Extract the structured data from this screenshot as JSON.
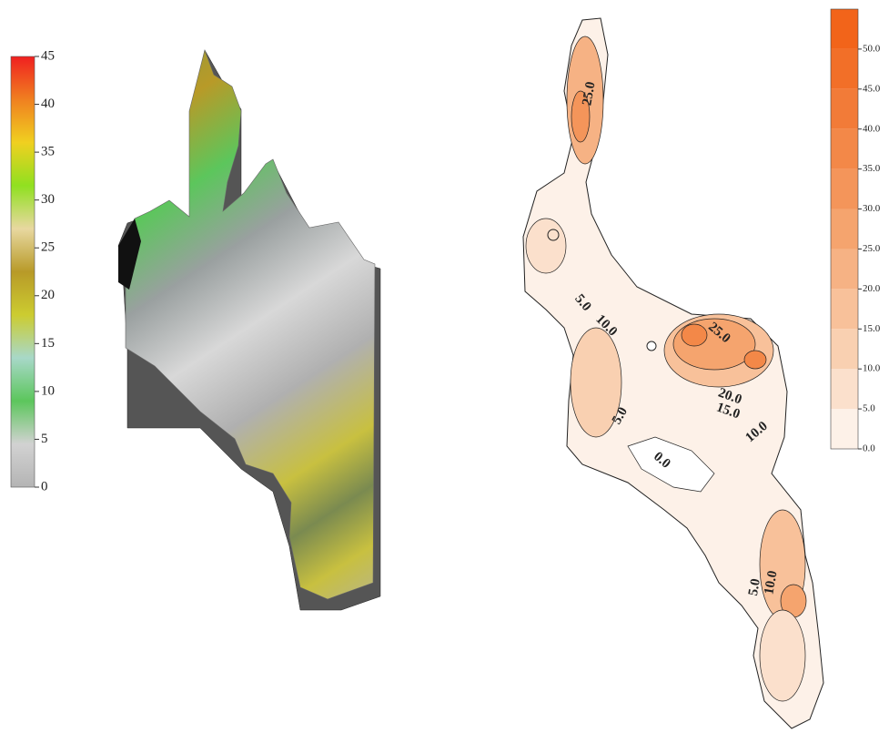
{
  "chart_data": [
    {
      "type": "surface3d",
      "colorbar": {
        "ylim": [
          0,
          45
        ],
        "yticks": [
          0,
          5,
          10,
          15,
          20,
          25,
          30,
          35,
          40,
          45
        ],
        "colors": [
          "#b4b4b4",
          "#d2d2d2",
          "#5cc65c",
          "#a8d8c8",
          "#cccc30",
          "#b89a28",
          "#e8d8a0",
          "#90e020",
          "#f0d020",
          "#f08020",
          "#f02020"
        ]
      }
    },
    {
      "type": "contour",
      "colorbar": {
        "ylim": [
          0,
          55
        ],
        "yticks": [
          {
            "value": 0,
            "label": "0.0"
          },
          {
            "value": 5,
            "label": "5.0"
          },
          {
            "value": 10,
            "label": "10.0"
          },
          {
            "value": 15,
            "label": "15.0"
          },
          {
            "value": 20,
            "label": "20.0"
          },
          {
            "value": 25,
            "label": "25.0"
          },
          {
            "value": 30,
            "label": "30.0"
          },
          {
            "value": 35,
            "label": "35.0"
          },
          {
            "value": 40,
            "label": "40.0"
          },
          {
            "value": 45,
            "label": "45.0"
          },
          {
            "value": 50,
            "label": "50.0"
          }
        ],
        "colors": [
          "#fdf1e8",
          "#fbe0cc",
          "#f9d0b1",
          "#f8c19a",
          "#f6b284",
          "#f5a46e",
          "#f4955a",
          "#f38848",
          "#f27b38",
          "#f26f28",
          "#f2641a"
        ]
      },
      "annotations": [
        "25.0",
        "5.0",
        "10.0",
        "25.0",
        "20.0",
        "15.0",
        "10.0",
        "5.0",
        "0.0",
        "5.0",
        "10.0"
      ]
    }
  ]
}
